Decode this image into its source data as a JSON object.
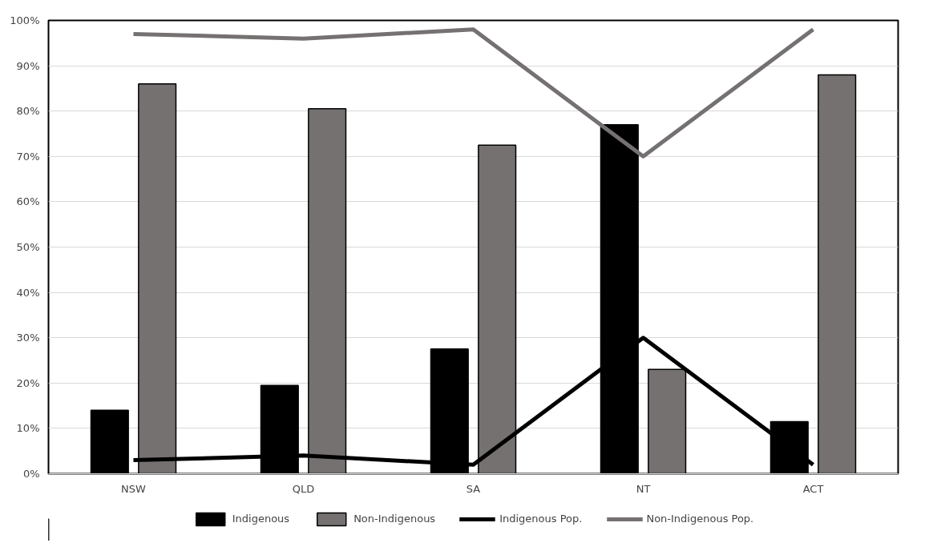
{
  "chart_data": {
    "type": "bar",
    "categories": [
      "NSW",
      "QLD",
      "SA",
      "NT",
      "ACT"
    ],
    "series": [
      {
        "name": "Indigenous",
        "color": "#000000",
        "values": [
          14,
          19.5,
          27.5,
          77,
          11.5
        ]
      },
      {
        "name": "Non-Indigenous",
        "color": "#757171",
        "values": [
          86,
          80.5,
          72.5,
          23,
          88
        ]
      },
      {
        "name": "Indigenous Pop.",
        "type": "line",
        "color": "#000000",
        "values": [
          3,
          4,
          2,
          30,
          2
        ]
      },
      {
        "name": "Non-Indigenous Pop.",
        "type": "line",
        "color": "#757171",
        "values": [
          97,
          96,
          98,
          70,
          98
        ]
      }
    ],
    "ylim": [
      0,
      100
    ],
    "yticks": [
      {
        "value": 0,
        "label": "0%"
      },
      {
        "value": 10,
        "label": "10%"
      },
      {
        "value": 20,
        "label": "20%"
      },
      {
        "value": 30,
        "label": "30%"
      },
      {
        "value": 40,
        "label": "40%"
      },
      {
        "value": 50,
        "label": "50%"
      },
      {
        "value": 60,
        "label": "60%"
      },
      {
        "value": 70,
        "label": "70%"
      },
      {
        "value": 80,
        "label": "80%"
      },
      {
        "value": 90,
        "label": "90%"
      },
      {
        "value": 100,
        "label": "100%"
      }
    ],
    "grid": "y",
    "legend": "bottom",
    "marker": "none",
    "line_style": "solid"
  }
}
